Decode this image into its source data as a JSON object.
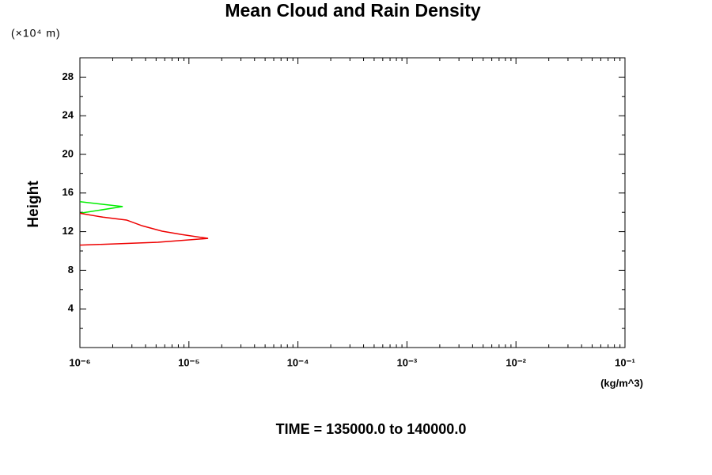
{
  "chart_data": {
    "type": "line",
    "title": "Mean Cloud and Rain Density",
    "y_unit": "(×10⁴ m)",
    "y_label": "Height",
    "x_unit": "(kg/m^3)",
    "footer": "TIME = 135000.0 to 140000.0",
    "x_scale": "log",
    "xlim": [
      1e-06,
      0.1
    ],
    "xticks": [
      {
        "value": 1e-06,
        "label": "10⁻⁶"
      },
      {
        "value": 1e-05,
        "label": "10⁻⁵"
      },
      {
        "value": 0.0001,
        "label": "10⁻⁴"
      },
      {
        "value": 0.001,
        "label": "10⁻³"
      },
      {
        "value": 0.01,
        "label": "10⁻²"
      },
      {
        "value": 0.1,
        "label": "10⁻¹"
      }
    ],
    "ylim": [
      0,
      30
    ],
    "yticks": [
      4,
      8,
      12,
      16,
      20,
      24,
      28
    ],
    "series": [
      {
        "color": "#00ee00",
        "x": [
          1e-06,
          2.47e-06,
          1e-06
        ],
        "values": [
          15.1,
          14.6,
          13.9
        ]
      },
      {
        "color": "#ee0000",
        "x": [
          1e-06,
          1.62e-06,
          2.68e-06,
          3.74e-06,
          5.67e-06,
          8.6e-06,
          1.5e-05,
          5.2e-06,
          1e-06
        ],
        "values": [
          13.9,
          13.5,
          13.2,
          12.6,
          12.05,
          11.7,
          11.3,
          10.9,
          10.6
        ]
      }
    ]
  }
}
